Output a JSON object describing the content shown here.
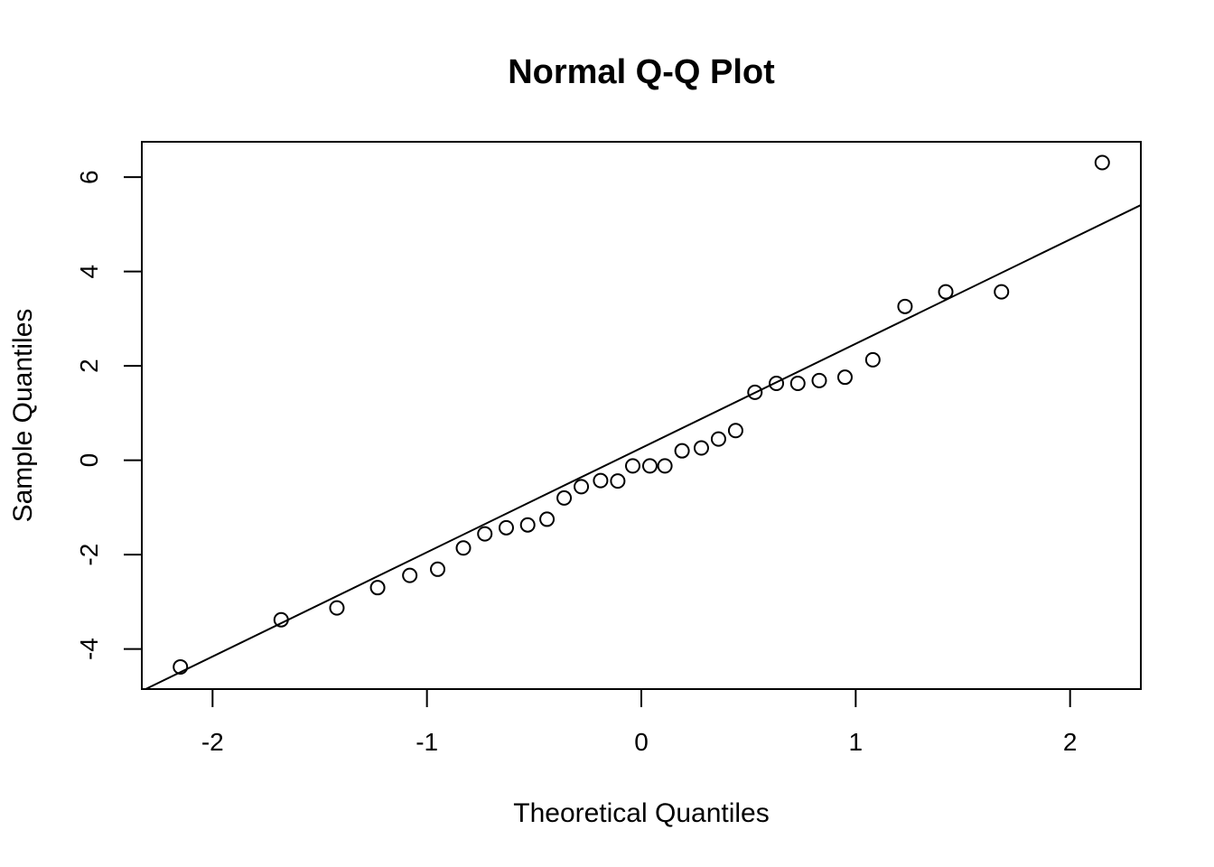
{
  "chart_data": {
    "type": "scatter",
    "title": "Normal Q-Q Plot",
    "xlabel": "Theoretical Quantiles",
    "ylabel": "Sample Quantiles",
    "xlim": [
      -2.33,
      2.33
    ],
    "ylim": [
      -4.85,
      6.75
    ],
    "x_ticks": [
      -2,
      -1,
      0,
      1,
      2
    ],
    "y_ticks": [
      -4,
      -2,
      0,
      2,
      4,
      6
    ],
    "x_tick_labels": [
      "-2",
      "-1",
      "0",
      "1",
      "2"
    ],
    "y_tick_labels": [
      "-4",
      "-2",
      "0",
      "2",
      "4",
      "6"
    ],
    "grid": false,
    "legend": "none",
    "series": [
      {
        "x": [
          -2.15,
          -1.68,
          -1.42,
          -1.23,
          -1.08,
          -0.95,
          -0.83,
          -0.73,
          -0.63,
          -0.53,
          -0.44,
          -0.36,
          -0.28,
          -0.19,
          -0.11,
          -0.04,
          0.04,
          0.11,
          0.19,
          0.28,
          0.36,
          0.44,
          0.53,
          0.63,
          0.73,
          0.83,
          0.95,
          1.08,
          1.23,
          1.42,
          1.68,
          2.15
        ],
        "y": [
          -4.38,
          -3.38,
          -3.13,
          -2.7,
          -2.44,
          -2.31,
          -1.86,
          -1.56,
          -1.43,
          -1.37,
          -1.25,
          -0.8,
          -0.56,
          -0.43,
          -0.44,
          -0.12,
          -0.12,
          -0.12,
          0.2,
          0.26,
          0.45,
          0.63,
          1.44,
          1.63,
          1.63,
          1.69,
          1.76,
          2.13,
          3.26,
          3.57,
          3.57,
          6.31
        ]
      }
    ],
    "reference_line": {
      "intercept": 0.26,
      "slope": 2.21
    }
  }
}
